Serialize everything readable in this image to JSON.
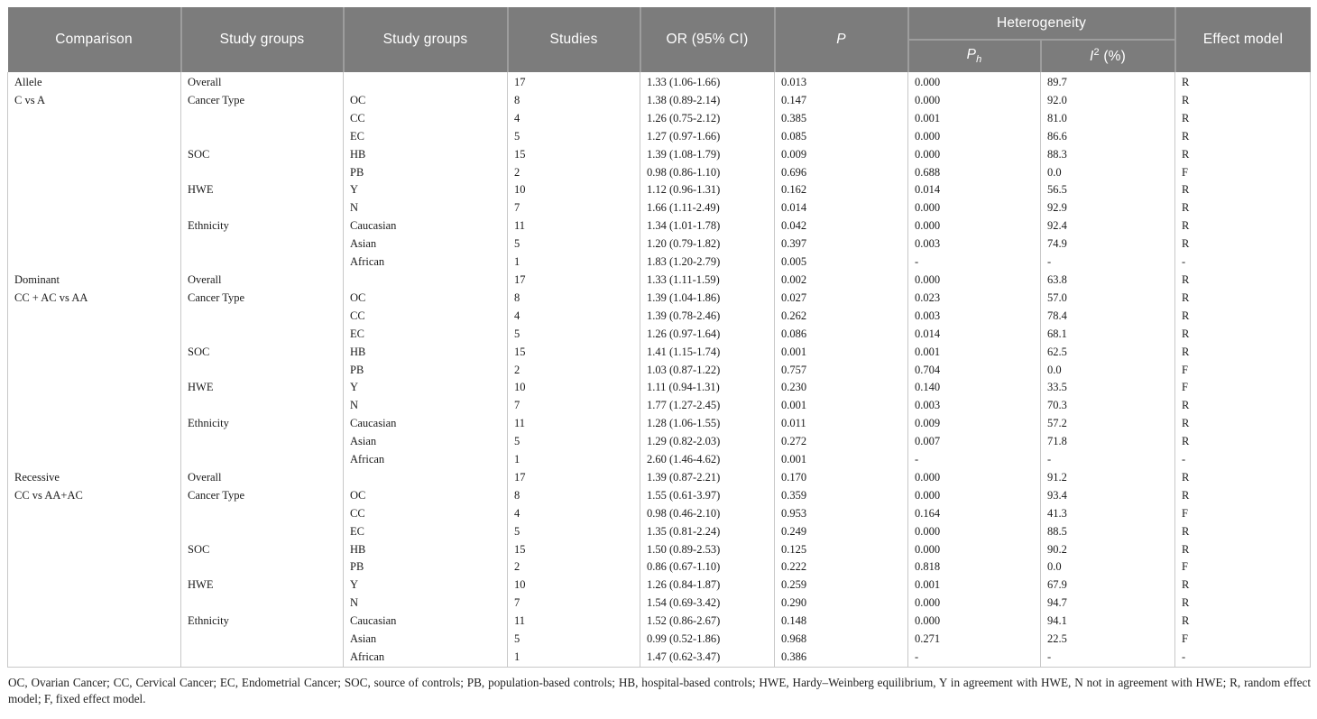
{
  "colors": {
    "header_bg": "#7c7c7c",
    "header_text": "#ffffff",
    "body_border": "#c8c8c8",
    "body_text": "#1a1a1a"
  },
  "table": {
    "header": {
      "comparison": "Comparison",
      "study_groups_1": "Study groups",
      "study_groups_2": "Study groups",
      "studies": "Studies",
      "or_ci": "OR (95% CI)",
      "p": "P",
      "heterogeneity": "Heterogeneity",
      "p_h_base": "P",
      "p_h_sub": "h",
      "i2_base": "I",
      "i2_sup": "2",
      "i2_unit": " (%)",
      "effect_model": "Effect model"
    },
    "rows": [
      [
        "Allele",
        "Overall",
        "",
        "17",
        "1.33 (1.06-1.66)",
        "0.013",
        "0.000",
        "89.7",
        "R"
      ],
      [
        "C vs A",
        "Cancer Type",
        "OC",
        "8",
        "1.38 (0.89-2.14)",
        "0.147",
        "0.000",
        "92.0",
        "R"
      ],
      [
        "",
        "",
        "CC",
        "4",
        "1.26 (0.75-2.12)",
        "0.385",
        "0.001",
        "81.0",
        "R"
      ],
      [
        "",
        "",
        "EC",
        "5",
        "1.27 (0.97-1.66)",
        "0.085",
        "0.000",
        "86.6",
        "R"
      ],
      [
        "",
        "SOC",
        "HB",
        "15",
        "1.39 (1.08-1.79)",
        "0.009",
        "0.000",
        "88.3",
        "R"
      ],
      [
        "",
        "",
        "PB",
        "2",
        "0.98 (0.86-1.10)",
        "0.696",
        "0.688",
        "0.0",
        "F"
      ],
      [
        "",
        "HWE",
        "Y",
        "10",
        "1.12 (0.96-1.31)",
        "0.162",
        "0.014",
        "56.5",
        "R"
      ],
      [
        "",
        "",
        "N",
        "7",
        "1.66 (1.11-2.49)",
        "0.014",
        "0.000",
        "92.9",
        "R"
      ],
      [
        "",
        "Ethnicity",
        "Caucasian",
        "11",
        "1.34 (1.01-1.78)",
        "0.042",
        "0.000",
        "92.4",
        "R"
      ],
      [
        "",
        "",
        "Asian",
        "5",
        "1.20 (0.79-1.82)",
        "0.397",
        "0.003",
        "74.9",
        "R"
      ],
      [
        "",
        "",
        "African",
        "1",
        "1.83 (1.20-2.79)",
        "0.005",
        "-",
        "-",
        "-"
      ],
      [
        "Dominant",
        "Overall",
        "",
        "17",
        "1.33 (1.11-1.59)",
        "0.002",
        "0.000",
        "63.8",
        "R"
      ],
      [
        "CC + AC vs AA",
        "Cancer Type",
        "OC",
        "8",
        "1.39 (1.04-1.86)",
        "0.027",
        "0.023",
        "57.0",
        "R"
      ],
      [
        "",
        "",
        "CC",
        "4",
        "1.39 (0.78-2.46)",
        "0.262",
        "0.003",
        "78.4",
        "R"
      ],
      [
        "",
        "",
        "EC",
        "5",
        "1.26 (0.97-1.64)",
        "0.086",
        "0.014",
        "68.1",
        "R"
      ],
      [
        "",
        "SOC",
        "HB",
        "15",
        "1.41 (1.15-1.74)",
        "0.001",
        "0.001",
        "62.5",
        "R"
      ],
      [
        "",
        "",
        "PB",
        "2",
        "1.03 (0.87-1.22)",
        "0.757",
        "0.704",
        "0.0",
        "F"
      ],
      [
        "",
        "HWE",
        "Y",
        "10",
        "1.11 (0.94-1.31)",
        "0.230",
        "0.140",
        "33.5",
        "F"
      ],
      [
        "",
        "",
        "N",
        "7",
        "1.77 (1.27-2.45)",
        "0.001",
        "0.003",
        "70.3",
        "R"
      ],
      [
        "",
        "Ethnicity",
        "Caucasian",
        "11",
        "1.28 (1.06-1.55)",
        "0.011",
        "0.009",
        "57.2",
        "R"
      ],
      [
        "",
        "",
        "Asian",
        "5",
        "1.29 (0.82-2.03)",
        "0.272",
        "0.007",
        "71.8",
        "R"
      ],
      [
        "",
        "",
        "African",
        "1",
        "2.60 (1.46-4.62)",
        "0.001",
        "-",
        "-",
        "-"
      ],
      [
        "Recessive",
        "Overall",
        "",
        "17",
        "1.39 (0.87-2.21)",
        "0.170",
        "0.000",
        "91.2",
        "R"
      ],
      [
        "CC vs AA+AC",
        "Cancer Type",
        "OC",
        "8",
        "1.55 (0.61-3.97)",
        "0.359",
        "0.000",
        "93.4",
        "R"
      ],
      [
        "",
        "",
        "CC",
        "4",
        "0.98 (0.46-2.10)",
        "0.953",
        "0.164",
        "41.3",
        "F"
      ],
      [
        "",
        "",
        "EC",
        "5",
        "1.35 (0.81-2.24)",
        "0.249",
        "0.000",
        "88.5",
        "R"
      ],
      [
        "",
        "SOC",
        "HB",
        "15",
        "1.50 (0.89-2.53)",
        "0.125",
        "0.000",
        "90.2",
        "R"
      ],
      [
        "",
        "",
        "PB",
        "2",
        "0.86 (0.67-1.10)",
        "0.222",
        "0.818",
        "0.0",
        "F"
      ],
      [
        "",
        "HWE",
        "Y",
        "10",
        "1.26 (0.84-1.87)",
        "0.259",
        "0.001",
        "67.9",
        "R"
      ],
      [
        "",
        "",
        "N",
        "7",
        "1.54 (0.69-3.42)",
        "0.290",
        "0.000",
        "94.7",
        "R"
      ],
      [
        "",
        "Ethnicity",
        "Caucasian",
        "11",
        "1.52 (0.86-2.67)",
        "0.148",
        "0.000",
        "94.1",
        "R"
      ],
      [
        "",
        "",
        "Asian",
        "5",
        "0.99 (0.52-1.86)",
        "0.968",
        "0.271",
        "22.5",
        "F"
      ],
      [
        "",
        "",
        "African",
        "1",
        "1.47 (0.62-3.47)",
        "0.386",
        "-",
        "-",
        "-"
      ]
    ],
    "footnote": "OC, Ovarian Cancer; CC, Cervical Cancer; EC, Endometrial Cancer; SOC, source of controls; PB, population-based controls; HB, hospital-based controls; HWE, Hardy–Weinberg equilibrium, Y in agreement with HWE, N not in agreement with HWE; R, random effect model; F, fixed effect model."
  }
}
